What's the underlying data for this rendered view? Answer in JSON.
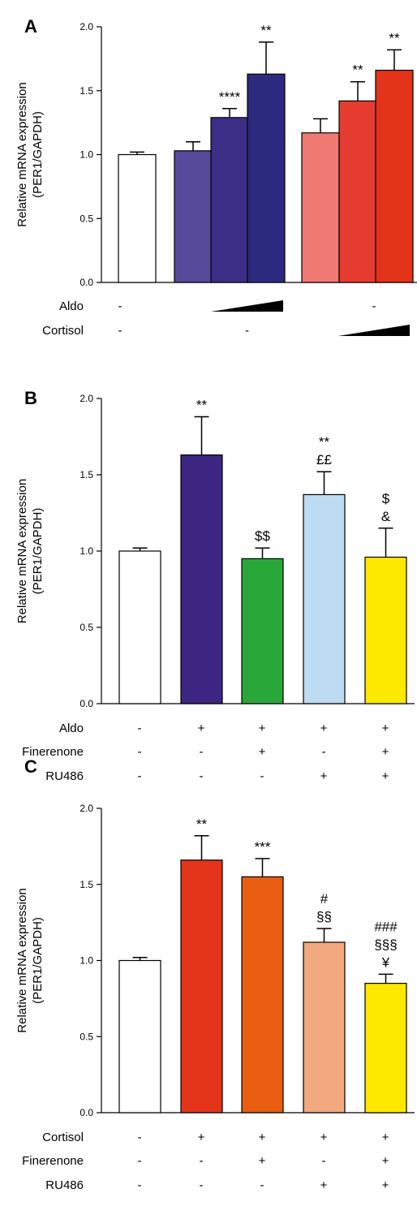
{
  "chart_data": [
    {
      "panel": "A",
      "type": "bar",
      "ylabel": [
        "Relative mRNA expression",
        "(PER1/GAPDH)"
      ],
      "ylim": [
        0,
        2.0
      ],
      "yticks": [
        "0.0",
        "0.5",
        "1.0",
        "1.5",
        "2.0"
      ],
      "bars": [
        {
          "value": 1.0,
          "err": 0.02,
          "color": "#ffffff",
          "annot": []
        },
        {
          "value": 1.03,
          "err": 0.07,
          "color": "#574a9b",
          "annot": []
        },
        {
          "value": 1.29,
          "err": 0.07,
          "color": "#3c2d87",
          "annot": [
            "****"
          ]
        },
        {
          "value": 1.63,
          "err": 0.25,
          "color": "#2c2a7f",
          "annot": [
            "**"
          ]
        },
        {
          "value": 1.17,
          "err": 0.11,
          "color": "#f07a73",
          "annot": []
        },
        {
          "value": 1.42,
          "err": 0.15,
          "color": "#e63b2f",
          "annot": [
            "**"
          ]
        },
        {
          "value": 1.66,
          "err": 0.16,
          "color": "#e3341a",
          "annot": [
            "**"
          ]
        }
      ],
      "conditions": [
        {
          "label": "Aldo",
          "marks": [
            "-",
            "ramp",
            "-"
          ]
        },
        {
          "label": "Cortisol",
          "marks": [
            "-",
            "-",
            "ramp"
          ]
        }
      ]
    },
    {
      "panel": "B",
      "type": "bar",
      "ylabel": [
        "Relative mRNA expression",
        "(PER1/GAPDH)"
      ],
      "ylim": [
        0,
        2.0
      ],
      "yticks": [
        "0.0",
        "0.5",
        "1.0",
        "1.5",
        "2.0"
      ],
      "bars": [
        {
          "value": 1.0,
          "err": 0.02,
          "color": "#ffffff",
          "annot": []
        },
        {
          "value": 1.63,
          "err": 0.25,
          "color": "#3c2681",
          "annot": [
            "**"
          ]
        },
        {
          "value": 0.95,
          "err": 0.07,
          "color": "#2aa739",
          "annot": [
            "$$"
          ]
        },
        {
          "value": 1.37,
          "err": 0.15,
          "color": "#bddbf2",
          "annot": [
            "**",
            "££"
          ]
        },
        {
          "value": 0.96,
          "err": 0.19,
          "color": "#fde900",
          "annot": [
            "$",
            "&"
          ]
        }
      ],
      "conditions": [
        {
          "label": "Aldo",
          "marks": [
            "-",
            "+",
            "+",
            "+",
            "+"
          ]
        },
        {
          "label": "Finerenone",
          "marks": [
            "-",
            "-",
            "+",
            "-",
            "+"
          ]
        },
        {
          "label": "RU486",
          "marks": [
            "-",
            "-",
            "-",
            "+",
            "+"
          ]
        }
      ]
    },
    {
      "panel": "C",
      "type": "bar",
      "ylabel": [
        "Relative mRNA expression",
        "(PER1/GAPDH)"
      ],
      "ylim": [
        0,
        2.0
      ],
      "yticks": [
        "0.0",
        "0.5",
        "1.0",
        "1.5",
        "2.0"
      ],
      "bars": [
        {
          "value": 1.0,
          "err": 0.02,
          "color": "#ffffff",
          "annot": []
        },
        {
          "value": 1.66,
          "err": 0.16,
          "color": "#e4341a",
          "annot": [
            "**"
          ]
        },
        {
          "value": 1.55,
          "err": 0.12,
          "color": "#e85d0f",
          "annot": [
            "***"
          ]
        },
        {
          "value": 1.12,
          "err": 0.09,
          "color": "#f3a97f",
          "annot": [
            "#",
            "§§"
          ]
        },
        {
          "value": 0.85,
          "err": 0.06,
          "color": "#fde900",
          "annot": [
            "###",
            "§§§",
            "¥"
          ]
        }
      ],
      "conditions": [
        {
          "label": "Cortisol",
          "marks": [
            "-",
            "+",
            "+",
            "+",
            "+"
          ]
        },
        {
          "label": "Finerenone",
          "marks": [
            "-",
            "-",
            "+",
            "-",
            "+"
          ]
        },
        {
          "label": "RU486",
          "marks": [
            "-",
            "-",
            "-",
            "+",
            "+"
          ]
        }
      ]
    }
  ]
}
